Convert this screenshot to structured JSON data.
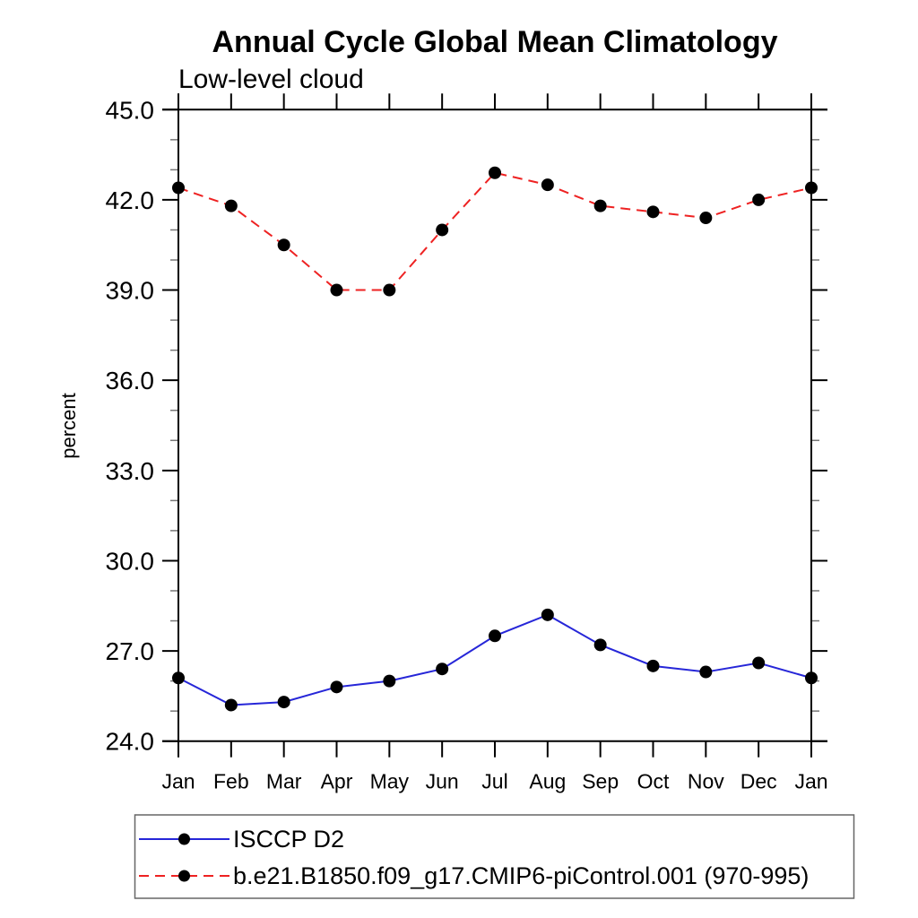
{
  "chart_data": {
    "type": "line",
    "title": "Annual Cycle Global Mean Climatology",
    "subtitle": "Low-level cloud",
    "ylabel": "percent",
    "xlabel": "",
    "categories": [
      "Jan",
      "Feb",
      "Mar",
      "Apr",
      "May",
      "Jun",
      "Jul",
      "Aug",
      "Sep",
      "Oct",
      "Nov",
      "Dec",
      "Jan"
    ],
    "y_axis": {
      "min": 24.0,
      "max": 45.0,
      "major_step": 3.0,
      "minor_step": 1.0,
      "tick_labels": [
        "24.0",
        "27.0",
        "30.0",
        "33.0",
        "36.0",
        "39.0",
        "42.0",
        "45.0"
      ]
    },
    "grid": false,
    "legend_position": "bottom-left",
    "colors": {
      "axis": "#000000",
      "minor_tick": "#777777",
      "legend_border": "#666666",
      "marker": "#000000",
      "series1": "#2626d8",
      "series2": "#ee2222"
    },
    "series": [
      {
        "name": "ISCCP D2",
        "color": "#2626d8",
        "line_style": "solid",
        "marker": "filled-circle",
        "marker_color": "#000000",
        "values": [
          26.1,
          25.2,
          25.3,
          25.8,
          26.0,
          26.4,
          27.5,
          28.2,
          27.2,
          26.5,
          26.3,
          26.6,
          26.1
        ]
      },
      {
        "name": "b.e21.B1850.f09_g17.CMIP6-piControl.001 (970-995)",
        "color": "#ee2222",
        "line_style": "dashed",
        "marker": "filled-circle",
        "marker_color": "#000000",
        "values": [
          42.4,
          41.8,
          40.5,
          39.0,
          39.0,
          41.0,
          42.9,
          42.5,
          41.8,
          41.6,
          41.4,
          42.0,
          42.4
        ]
      }
    ]
  }
}
